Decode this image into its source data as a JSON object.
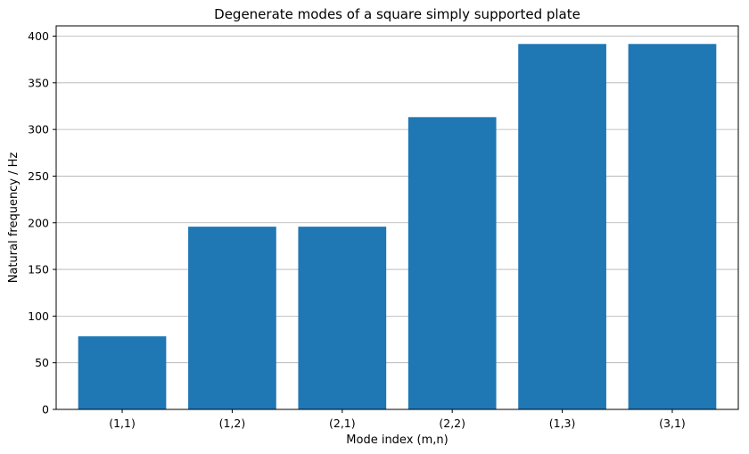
{
  "chart_data": {
    "type": "bar",
    "title": "Degenerate modes of a square simply supported plate",
    "xlabel": "Mode index (m,n)",
    "ylabel": "Natural frequency / Hz",
    "categories": [
      "(1,1)",
      "(1,2)",
      "(2,1)",
      "(2,2)",
      "(1,3)",
      "(3,1)"
    ],
    "values": [
      78.3,
      195.8,
      195.8,
      313.2,
      391.6,
      391.6
    ],
    "ylim": [
      0,
      411
    ],
    "yticks": [
      0,
      50,
      100,
      150,
      200,
      250,
      300,
      350,
      400
    ],
    "grid": "y",
    "legend": "none",
    "bar_color": "#1f77b4"
  }
}
